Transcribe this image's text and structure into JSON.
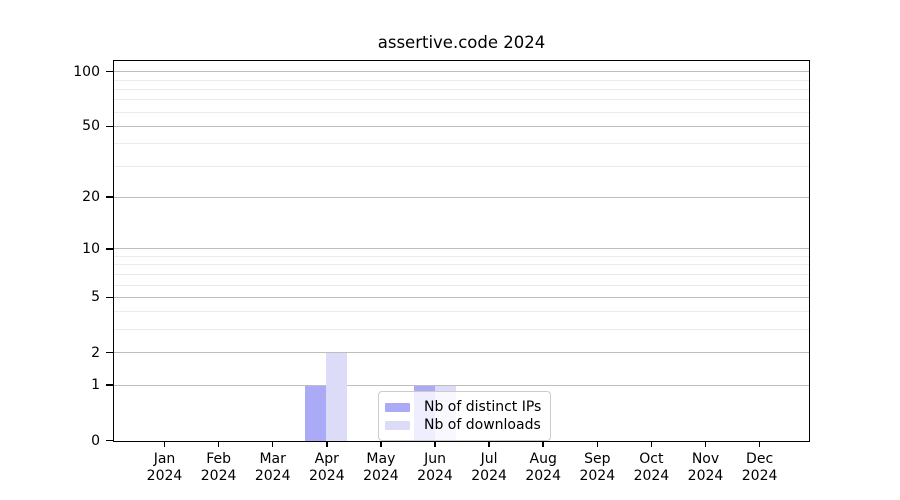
{
  "title": "assertive.code 2024",
  "chart_data": {
    "type": "bar",
    "title": "assertive.code 2024",
    "categories": [
      "Jan",
      "Feb",
      "Mar",
      "Apr",
      "May",
      "Jun",
      "Jul",
      "Aug",
      "Sep",
      "Oct",
      "Nov",
      "Dec"
    ],
    "year_label": "2024",
    "series": [
      {
        "name": "Nb of distinct IPs",
        "color": "#aaaaf7",
        "values": [
          0,
          0,
          0,
          1,
          0,
          1,
          0,
          0,
          0,
          0,
          0,
          0
        ]
      },
      {
        "name": "Nb of downloads",
        "color": "#dcdcf9",
        "values": [
          0,
          0,
          0,
          2,
          0,
          1,
          0,
          0,
          0,
          0,
          0,
          0
        ]
      }
    ],
    "yscale": "log1p",
    "ylim": [
      0,
      115
    ],
    "y_major_ticks": [
      0,
      1,
      2,
      5,
      10,
      20,
      50,
      100
    ],
    "y_minor_gridlines": [
      3,
      4,
      6,
      7,
      8,
      9,
      30,
      40,
      60,
      70,
      80,
      90
    ],
    "grid": true,
    "legend_position": "lower center"
  },
  "colors": {
    "major_grid": "#bdbdbd",
    "minor_grid": "#ebebeb",
    "axis": "#000000",
    "background": "#ffffff",
    "legend_border": "#cccccc",
    "distinct_ips": "#aaaaf7",
    "downloads": "#dcdcf9"
  }
}
